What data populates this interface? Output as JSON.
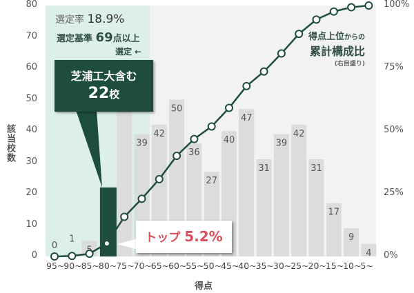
{
  "chart_data": {
    "type": "bar+line",
    "title": "",
    "xlabel": "得点",
    "ylabel": "該当校数",
    "y_right_label": "得点上位からの累計構成比（右目盛り）",
    "ylim": [
      0,
      80
    ],
    "y_ticks": [
      0,
      10,
      20,
      30,
      40,
      50,
      60,
      70,
      80
    ],
    "y_right_ticks": [
      "0%",
      "25%",
      "50%",
      "75%",
      "100%"
    ],
    "categories": [
      "95~",
      "90~",
      "85~",
      "80~",
      "75~",
      "70~",
      "65~",
      "60~",
      "55~",
      "50~",
      "45~",
      "40~",
      "35~",
      "30~",
      "25~",
      "20~",
      "15~",
      "10~",
      "5~"
    ],
    "series": [
      {
        "name": "該当校数",
        "type": "bar",
        "values": [
          0,
          1,
          5,
          22,
          57,
          39,
          42,
          50,
          36,
          27,
          40,
          47,
          31,
          39,
          42,
          31,
          17,
          9,
          4
        ],
        "highlight_index": 3,
        "highlight_color": "#1e4d3b",
        "color": "#dcdcdc"
      },
      {
        "name": "得点上位からの累計構成比",
        "type": "line",
        "axis": "right",
        "unit": "%",
        "values": [
          0,
          0.2,
          1.1,
          5.2,
          15.8,
          23.0,
          30.8,
          40.1,
          46.8,
          51.8,
          59.2,
          67.9,
          73.7,
          80.9,
          88.7,
          94.4,
          97.6,
          99.3,
          100
        ],
        "color": "#1e4d3b"
      }
    ],
    "shaded_region": {
      "from": "95~",
      "to": "75~",
      "color": "#dcefe8",
      "note": "選定"
    },
    "annotations": {
      "selection_rate_label": "選定率",
      "selection_rate_value": "18.9%",
      "criterion_label": "選定基準",
      "criterion_value": "69",
      "criterion_suffix": "点以上",
      "selected_label": "選定 ←",
      "callout_line1": "芝浦工大含む",
      "callout_count": "22",
      "callout_unit": "校",
      "top_label": "トップ",
      "top_value": "5.2%",
      "cum_label_small": "得点上位",
      "cum_label_small2": "からの",
      "cum_label_main": "累計構成比",
      "cum_label_note": "(右目盛り)"
    },
    "grid": false,
    "legend": "none"
  }
}
